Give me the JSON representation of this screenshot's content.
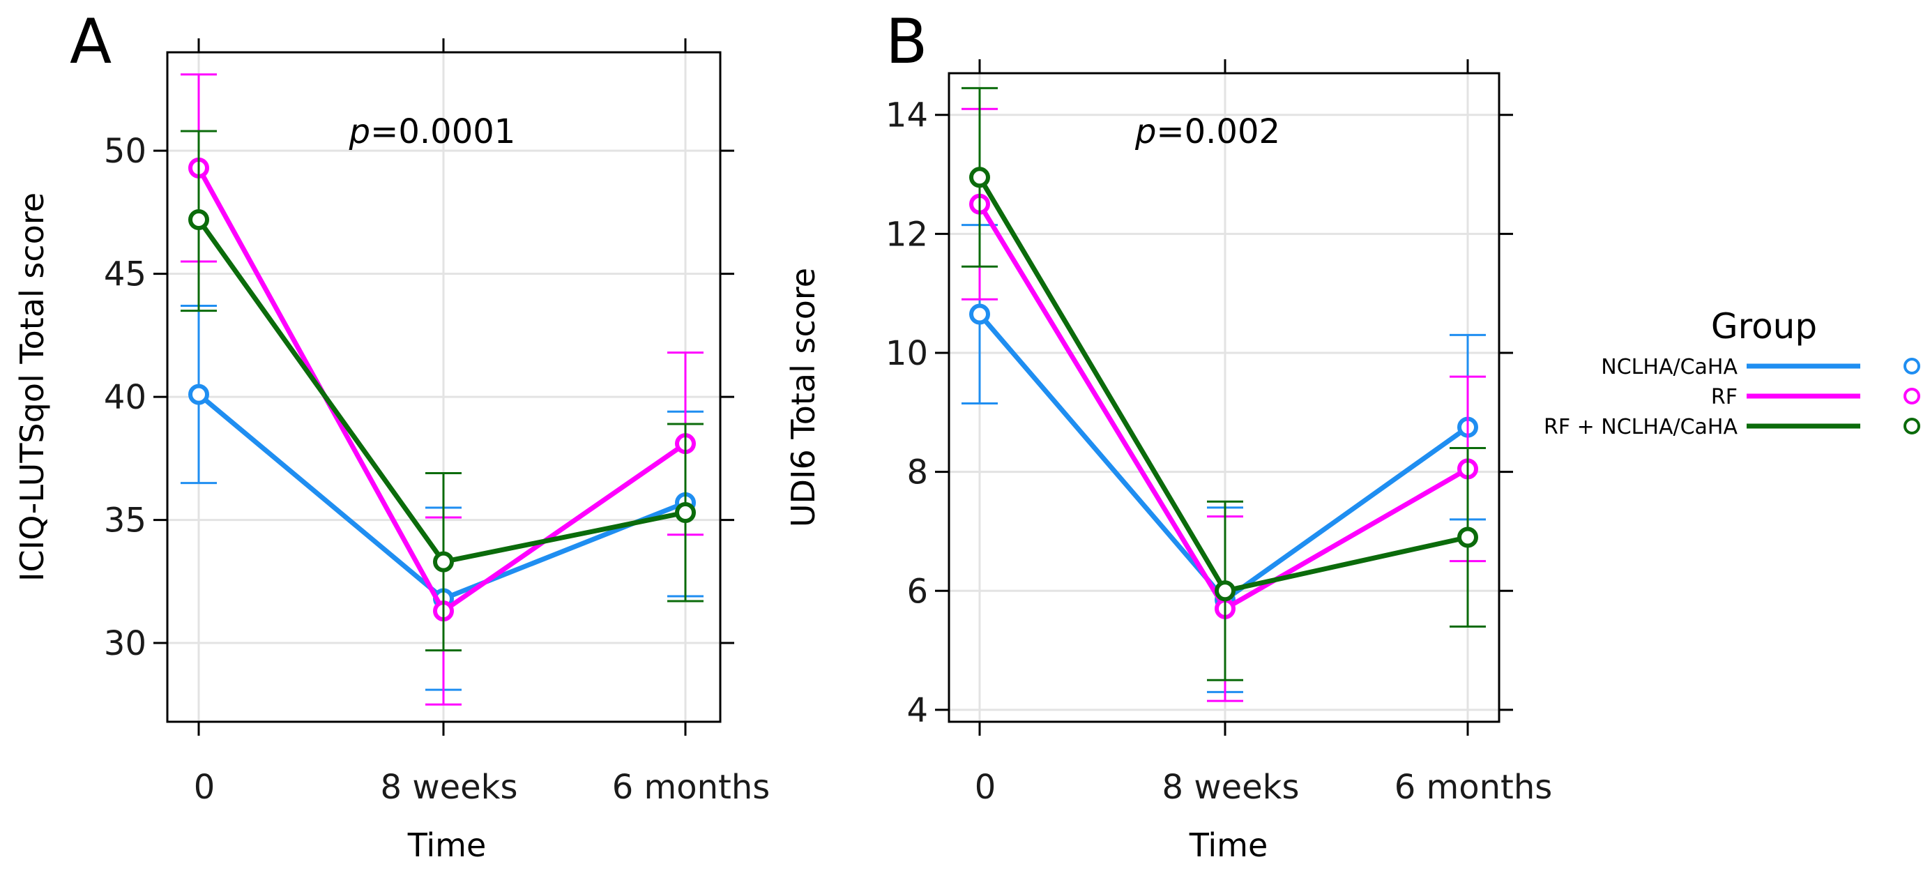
{
  "chart_data": [
    {
      "type": "line",
      "panel_label": "A",
      "annotation": {
        "prefix": "p",
        "value": "=0.0001"
      },
      "xlabel": "Time",
      "ylabel": "ICIQ-LUTSqol Total score",
      "categories": [
        "0",
        "8 weeks",
        "6 months"
      ],
      "ylim": [
        26.8,
        54.0
      ],
      "yticks": [
        30,
        35,
        40,
        45,
        50
      ],
      "grid": true,
      "series": [
        {
          "name": "NCLHA/CaHA",
          "color": "#1f8ef1",
          "values": [
            40.1,
            31.8,
            35.7
          ],
          "ci_low": [
            36.5,
            28.1,
            31.9
          ],
          "ci_high": [
            43.7,
            35.5,
            39.4
          ]
        },
        {
          "name": "RF",
          "color": "#ff00ff",
          "values": [
            49.3,
            31.3,
            38.1
          ],
          "ci_low": [
            45.5,
            27.5,
            34.4
          ],
          "ci_high": [
            53.1,
            35.1,
            41.8
          ]
        },
        {
          "name": "RF + NCLHA/CaHA",
          "color": "#0b6b0b",
          "values": [
            47.2,
            33.3,
            35.3
          ],
          "ci_low": [
            43.5,
            29.7,
            31.7
          ],
          "ci_high": [
            50.8,
            36.9,
            38.9
          ]
        }
      ]
    },
    {
      "type": "line",
      "panel_label": "B",
      "annotation": {
        "prefix": "p",
        "value": "=0.002"
      },
      "xlabel": "Time",
      "ylabel": "UDI6 Total score",
      "categories": [
        "0",
        "8 weeks",
        "6 months"
      ],
      "ylim": [
        3.8,
        14.7
      ],
      "yticks": [
        4,
        6,
        8,
        10,
        12,
        14
      ],
      "grid": true,
      "series": [
        {
          "name": "NCLHA/CaHA",
          "color": "#1f8ef1",
          "values": [
            10.65,
            5.85,
            8.75
          ],
          "ci_low": [
            9.15,
            4.3,
            7.2
          ],
          "ci_high": [
            12.15,
            7.4,
            10.3
          ]
        },
        {
          "name": "RF",
          "color": "#ff00ff",
          "values": [
            12.5,
            5.7,
            8.05
          ],
          "ci_low": [
            10.9,
            4.15,
            6.5
          ],
          "ci_high": [
            14.1,
            7.25,
            9.6
          ]
        },
        {
          "name": "RF + NCLHA/CaHA",
          "color": "#0b6b0b",
          "values": [
            12.95,
            6.0,
            6.9
          ],
          "ci_low": [
            11.45,
            4.5,
            5.4
          ],
          "ci_high": [
            14.45,
            7.5,
            8.4
          ]
        }
      ]
    }
  ],
  "legend": {
    "title": "Group",
    "placement": "right",
    "entries": [
      {
        "label": "NCLHA/CaHA",
        "color": "#1f8ef1"
      },
      {
        "label": "RF",
        "color": "#ff00ff"
      },
      {
        "label": "RF + NCLHA/CaHA",
        "color": "#0b6b0b"
      }
    ]
  }
}
